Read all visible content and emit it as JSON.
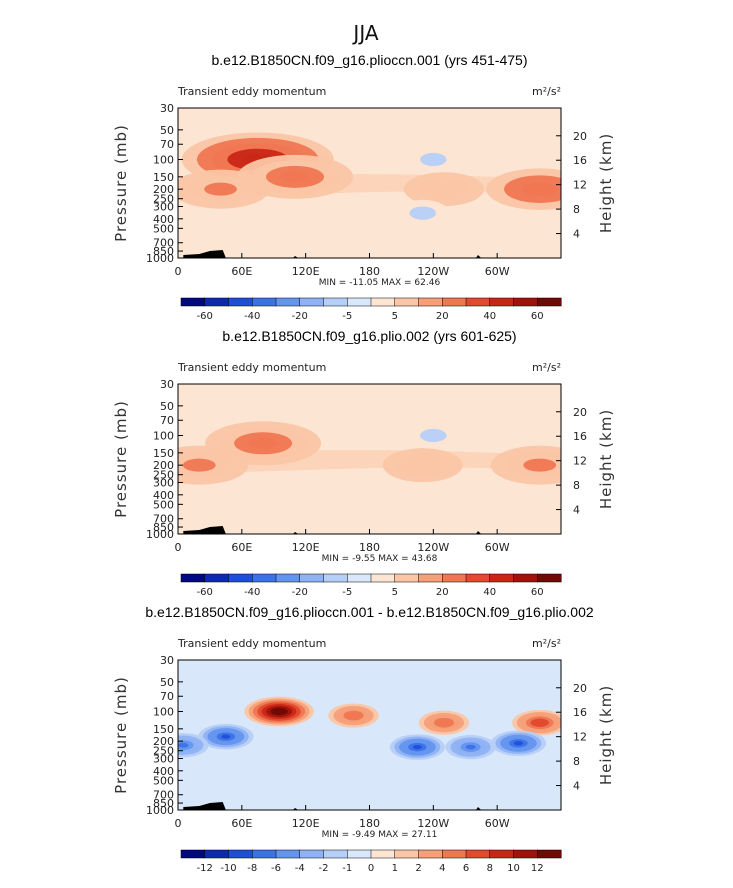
{
  "supertitle": "JJA",
  "panels": [
    {
      "title": "b.e12.B1850CN.f09_g16.plioccn.001 (yrs 451-475)",
      "left_label": "Transient eddy momentum",
      "units": "m²/s²",
      "minmax": "MIN = -11.05   MAX =  62.46",
      "colorbar": {
        "levels": [
          "-60",
          "-40",
          "-20",
          "-5",
          "5",
          "20",
          "40",
          "60"
        ],
        "colors": [
          "#00097f",
          "#0c2bb0",
          "#1f4fd8",
          "#3c72e6",
          "#6495ee",
          "#8fb2f4",
          "#b6cff8",
          "#d9e7fb",
          "#fde5d3",
          "#fac6a5",
          "#f6a07a",
          "#ef7751",
          "#e2492e",
          "#c92716",
          "#a1130a",
          "#6f0a05"
        ]
      },
      "chart_data": {
        "type": "heatmap",
        "title": "b.e12.B1850CN.f09_g16.plioccn.001 (yrs 451-475)",
        "variable": "Transient eddy momentum",
        "units": "m²/s²",
        "min": -11.05,
        "max": 62.46,
        "xlim": [
          0,
          360
        ],
        "ylim_pressure_mb": [
          1000,
          30
        ],
        "x_ticks": [
          "0",
          "60E",
          "120E",
          "180",
          "120W",
          "60W"
        ],
        "y_ticks": [
          "30",
          "50",
          "70",
          "100",
          "150",
          "200",
          "250",
          "300",
          "400",
          "500",
          "700",
          "850",
          "1000"
        ],
        "y2_ticks": [
          "20",
          "16",
          "12",
          "8",
          "4"
        ],
        "ylabel": "Pressure (mb)",
        "y2label": "Height (km)",
        "features": [
          {
            "lon": 75,
            "p": 100,
            "value": 60
          },
          {
            "lon": 110,
            "p": 150,
            "value": 40
          },
          {
            "lon": 40,
            "p": 200,
            "value": 30
          },
          {
            "lon": 250,
            "p": 200,
            "value": 20
          },
          {
            "lon": 340,
            "p": 200,
            "value": 35
          },
          {
            "lon": 240,
            "p": 100,
            "value": -5
          },
          {
            "lon": 230,
            "p": 350,
            "value": -5
          }
        ]
      }
    },
    {
      "title": "b.e12.B1850CN.f09_g16.plio.002 (yrs 601-625)",
      "left_label": "Transient eddy momentum",
      "units": "m²/s²",
      "minmax": "MIN =  -9.55   MAX =  43.68",
      "colorbar": {
        "levels": [
          "-60",
          "-40",
          "-20",
          "-5",
          "5",
          "20",
          "40",
          "60"
        ],
        "colors": [
          "#00097f",
          "#0c2bb0",
          "#1f4fd8",
          "#3c72e6",
          "#6495ee",
          "#8fb2f4",
          "#b6cff8",
          "#d9e7fb",
          "#fde5d3",
          "#fac6a5",
          "#f6a07a",
          "#ef7751",
          "#e2492e",
          "#c92716",
          "#a1130a",
          "#6f0a05"
        ]
      },
      "chart_data": {
        "type": "heatmap",
        "title": "b.e12.B1850CN.f09_g16.plio.002 (yrs 601-625)",
        "variable": "Transient eddy momentum",
        "units": "m²/s²",
        "min": -9.55,
        "max": 43.68,
        "xlim": [
          0,
          360
        ],
        "ylim_pressure_mb": [
          1000,
          30
        ],
        "x_ticks": [
          "0",
          "60E",
          "120E",
          "180",
          "120W",
          "60W"
        ],
        "y_ticks": [
          "30",
          "50",
          "70",
          "100",
          "150",
          "200",
          "250",
          "300",
          "400",
          "500",
          "700",
          "850",
          "1000"
        ],
        "y2_ticks": [
          "20",
          "16",
          "12",
          "8",
          "4"
        ],
        "ylabel": "Pressure (mb)",
        "y2label": "Height (km)",
        "features": [
          {
            "lon": 80,
            "p": 120,
            "value": 40
          },
          {
            "lon": 20,
            "p": 200,
            "value": 30
          },
          {
            "lon": 230,
            "p": 200,
            "value": 20
          },
          {
            "lon": 340,
            "p": 200,
            "value": 30
          },
          {
            "lon": 240,
            "p": 100,
            "value": -5
          }
        ]
      }
    },
    {
      "title": "b.e12.B1850CN.f09_g16.plioccn.001 - b.e12.B1850CN.f09_g16.plio.002",
      "left_label": "Transient eddy momentum",
      "units": "m²/s²",
      "minmax": "MIN =  -9.49   MAX =  27.11",
      "colorbar": {
        "levels": [
          "-12",
          "-10",
          "-8",
          "-6",
          "-4",
          "-2",
          "-1",
          "0",
          "1",
          "2",
          "4",
          "6",
          "8",
          "10",
          "12"
        ],
        "colors": [
          "#00097f",
          "#0c2bb0",
          "#1f4fd8",
          "#3c72e6",
          "#6495ee",
          "#8fb2f4",
          "#b6cff8",
          "#d9e7fb",
          "#fde5d3",
          "#fac6a5",
          "#f6a07a",
          "#ef7751",
          "#e2492e",
          "#c92716",
          "#a1130a",
          "#6f0a05"
        ]
      },
      "chart_data": {
        "type": "heatmap",
        "title": "b.e12.B1850CN.f09_g16.plioccn.001 - b.e12.B1850CN.f09_g16.plio.002",
        "variable": "Transient eddy momentum",
        "units": "m²/s²",
        "min": -9.49,
        "max": 27.11,
        "xlim": [
          0,
          360
        ],
        "ylim_pressure_mb": [
          1000,
          30
        ],
        "x_ticks": [
          "0",
          "60E",
          "120E",
          "180",
          "120W",
          "60W"
        ],
        "y_ticks": [
          "30",
          "50",
          "70",
          "100",
          "150",
          "200",
          "250",
          "300",
          "400",
          "500",
          "700",
          "850",
          "1000"
        ],
        "y2_ticks": [
          "20",
          "16",
          "12",
          "8",
          "4"
        ],
        "ylabel": "Pressure (mb)",
        "y2label": "Height (km)",
        "features": [
          {
            "lon": 95,
            "p": 100,
            "value": 14
          },
          {
            "lon": 165,
            "p": 110,
            "value": 6
          },
          {
            "lon": 250,
            "p": 130,
            "value": 6
          },
          {
            "lon": 340,
            "p": 130,
            "value": 8
          },
          {
            "lon": 45,
            "p": 180,
            "value": -8
          },
          {
            "lon": 225,
            "p": 230,
            "value": -8
          },
          {
            "lon": 275,
            "p": 230,
            "value": -6
          },
          {
            "lon": 320,
            "p": 210,
            "value": -8
          },
          {
            "lon": 5,
            "p": 220,
            "value": -6
          }
        ]
      }
    }
  ]
}
